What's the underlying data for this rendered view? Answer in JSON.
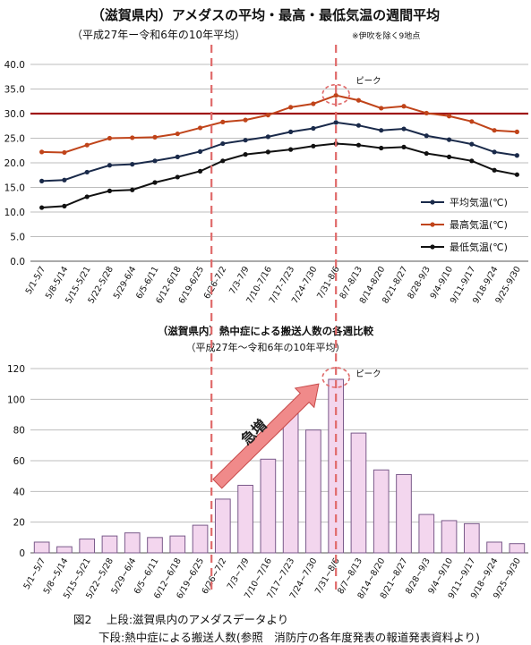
{
  "top_title": "（滋賀県内）アメダスの平均・最高・最低気温の週間平均",
  "top_subtitle": "（平成27年ー令和6年の10年平均）",
  "top_note": "※伊吹を除く9地点",
  "bottom_title": "（滋賀県内）熱中症による搬送人数の各週比較",
  "bottom_subtitle": "（平成27年～令和6年の10年平均）",
  "peak_label": "ピーク",
  "surge_label": "急増",
  "caption_line1": "図2　 上段:滋賀県内のアメダスデータより",
  "caption_line2": "下段:熱中症による搬送人数(参照　消防庁の各年度発表の報道発表資料より)",
  "colors": {
    "avg": "#1a2a4a",
    "max": "#c0441a",
    "min": "#111111",
    "ref_line": "#a01818",
    "bar_fill": "#f3d6ee",
    "bar_stroke": "#7a5a8a",
    "dash": "#e06a6a",
    "arrow": "#f08a8a"
  },
  "chart_data": [
    {
      "type": "line",
      "categories": [
        "5/1-5/7",
        "5/8-5/14",
        "5/15-5/21",
        "5/22-5/28",
        "5/29-6/4",
        "6/5-6/11",
        "6/12-6/18",
        "6/19-6/25",
        "6/26-7/2",
        "7/3-7/9",
        "7/10-7/16",
        "7/17-7/23",
        "7/24-7/30",
        "7/31-8/6",
        "8/7-8/13",
        "8/14-8/20",
        "8/21-8/27",
        "8/28-9/3",
        "9/4-9/10",
        "9/11-9/17",
        "9/18-9/24",
        "9/25-9/30"
      ],
      "series": [
        {
          "name": "平均気温(℃)",
          "values": [
            16.3,
            16.5,
            18.1,
            19.5,
            19.7,
            20.4,
            21.2,
            22.3,
            23.9,
            24.6,
            25.3,
            26.3,
            27.0,
            28.2,
            27.6,
            26.6,
            26.9,
            25.5,
            24.7,
            23.8,
            22.2,
            21.5
          ]
        },
        {
          "name": "最高気温(℃)",
          "values": [
            22.2,
            22.1,
            23.6,
            25.0,
            25.1,
            25.2,
            25.9,
            27.1,
            28.3,
            28.7,
            29.7,
            31.3,
            32.0,
            33.7,
            32.7,
            31.1,
            31.5,
            30.1,
            29.5,
            28.4,
            26.6,
            26.3
          ]
        },
        {
          "name": "最低気温(℃)",
          "values": [
            10.9,
            11.2,
            13.1,
            14.3,
            14.5,
            16.0,
            17.1,
            18.3,
            20.4,
            21.7,
            22.2,
            22.7,
            23.4,
            23.9,
            23.6,
            23.0,
            23.2,
            21.9,
            21.2,
            20.4,
            18.5,
            17.6
          ]
        }
      ],
      "reference_line": 30.0,
      "yticks": [
        "0.0",
        "5.0",
        "10.0",
        "15.0",
        "20.0",
        "25.0",
        "30.0",
        "35.0",
        "40.0"
      ],
      "ylim": [
        0,
        40
      ],
      "grid": true,
      "legend": "bottom-right"
    },
    {
      "type": "bar",
      "categories": [
        "5/1~5/7",
        "5/8~5/14",
        "5/15~5/21",
        "5/22~5/28",
        "5/29~6/4",
        "6/5~6/11",
        "6/12~6/18",
        "6/19~6/25",
        "6/26~7/2",
        "7/3~7/9",
        "7/10~7/16",
        "7/17~7/23",
        "7/24~7/30",
        "7/31~8/6",
        "8/7~8/13",
        "8/14~8/20",
        "8/21~8/27",
        "8/28~9/3",
        "9/4~9/10",
        "9/11~9/17",
        "9/18~9/24",
        "9/25~9/30"
      ],
      "values": [
        7,
        4,
        9,
        11,
        13,
        10,
        11,
        18,
        35,
        44,
        61,
        93,
        80,
        113,
        78,
        54,
        51,
        25,
        21,
        19,
        7,
        6
      ],
      "yticks": [
        "0",
        "20",
        "40",
        "60",
        "80",
        "100",
        "120"
      ],
      "ylim": [
        0,
        120
      ],
      "grid": true
    }
  ]
}
